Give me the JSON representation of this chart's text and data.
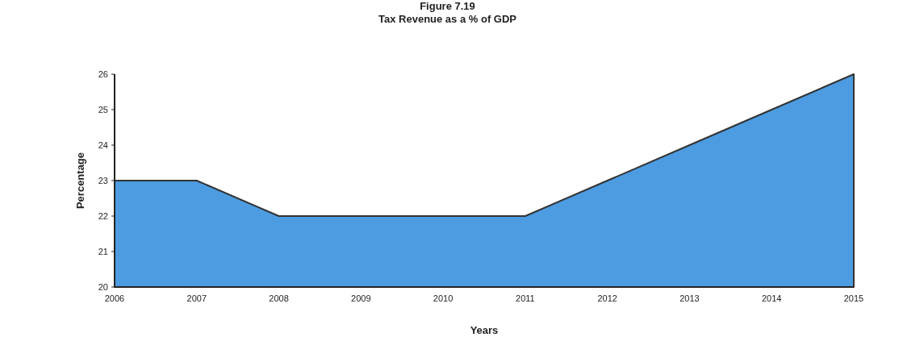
{
  "chart_data": {
    "type": "area",
    "title": "Figure 7.19",
    "subtitle": "Tax Revenue as a % of GDP",
    "xlabel": "Years",
    "ylabel": "Percentage",
    "categories": [
      "2006",
      "2007",
      "2008",
      "2009",
      "2010",
      "2011",
      "2012",
      "2013",
      "2014",
      "2015"
    ],
    "series": [
      {
        "color": "#4d9be0",
        "values": [
          23,
          23,
          22,
          22,
          22,
          22,
          23,
          24,
          25,
          26
        ]
      }
    ],
    "ylim": [
      20,
      26
    ],
    "yticks": [
      20,
      21,
      22,
      23,
      24,
      25,
      26
    ],
    "grid": false
  }
}
